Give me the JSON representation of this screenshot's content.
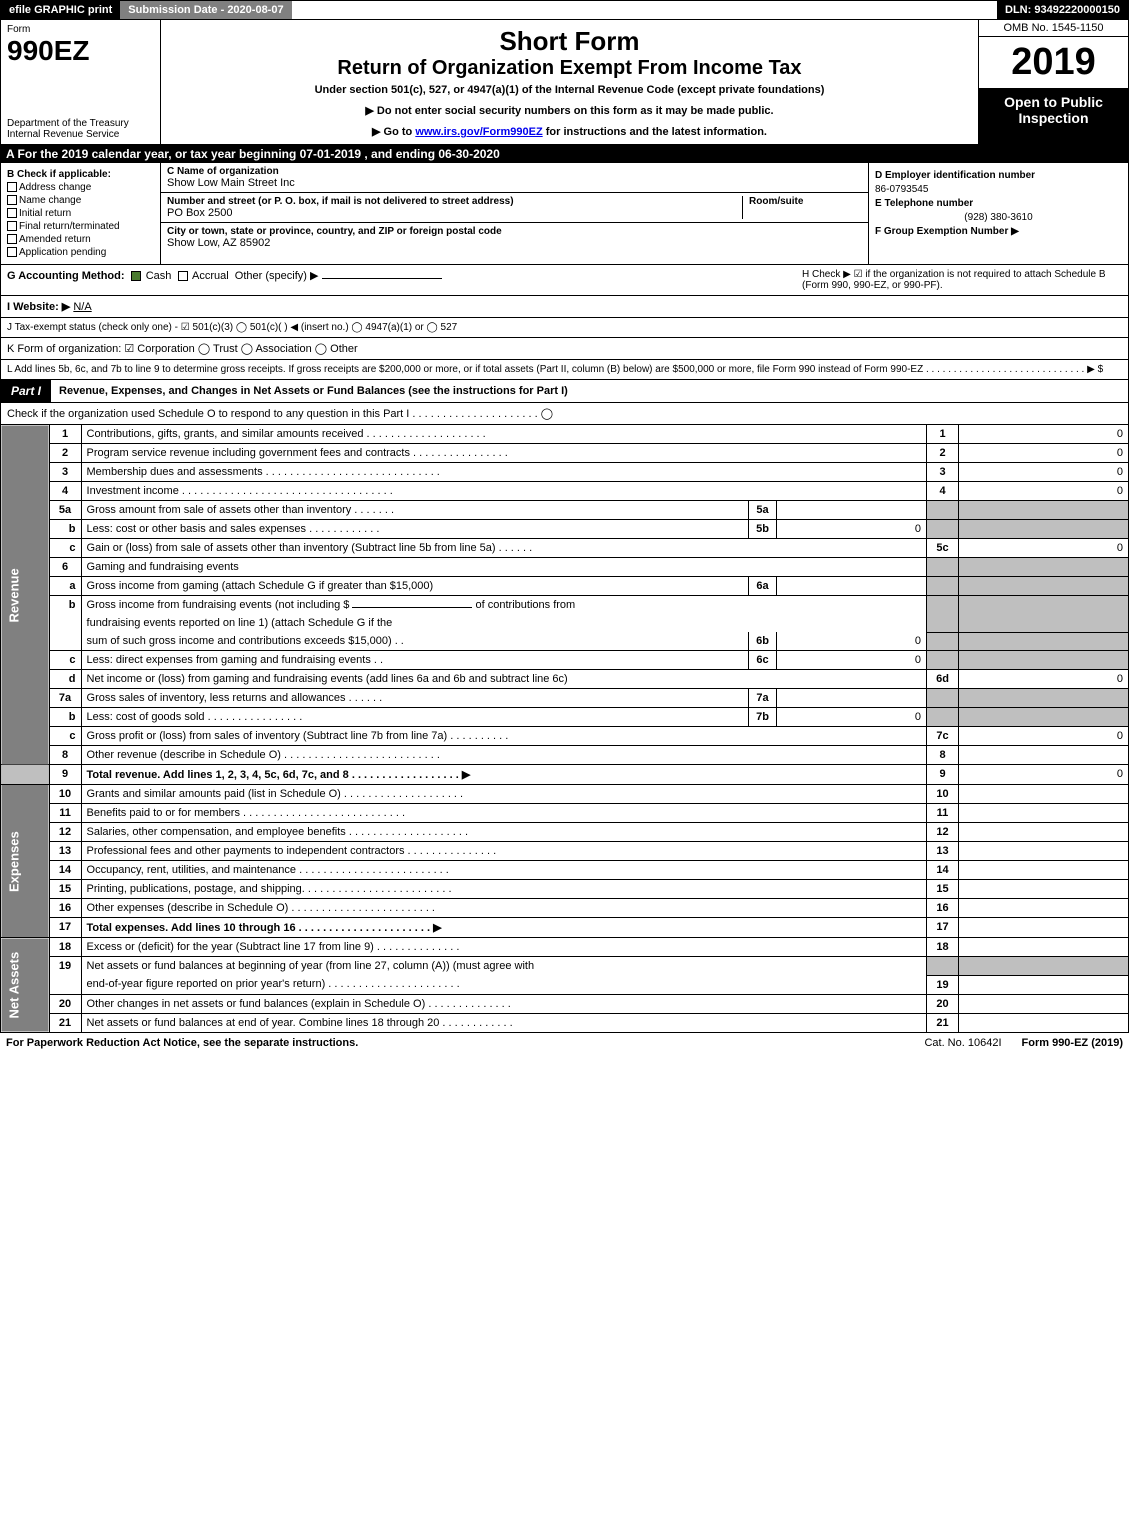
{
  "topbar": {
    "efile": "efile GRAPHIC print",
    "submission": "Submission Date - 2020-08-07",
    "dln": "DLN: 93492220000150"
  },
  "header": {
    "form_word": "Form",
    "form_num": "990EZ",
    "dept": "Department of the Treasury",
    "irs": "Internal Revenue Service",
    "short": "Short Form",
    "title": "Return of Organization Exempt From Income Tax",
    "sub": "Under section 501(c), 527, or 4947(a)(1) of the Internal Revenue Code (except private foundations)",
    "arrow1": "▶ Do not enter social security numbers on this form as it may be made public.",
    "arrow2_pre": "▶ Go to ",
    "arrow2_link": "www.irs.gov/Form990EZ",
    "arrow2_post": " for instructions and the latest information.",
    "omb": "OMB No. 1545-1150",
    "year": "2019",
    "open": "Open to Public Inspection"
  },
  "line_a": "A  For the 2019 calendar year, or tax year beginning 07-01-2019 , and ending 06-30-2020",
  "box_b": {
    "title": "B  Check if applicable:",
    "addr": "Address change",
    "name": "Name change",
    "init": "Initial return",
    "final": "Final return/terminated",
    "amend": "Amended return",
    "app": "Application pending"
  },
  "box_c": {
    "label": "C Name of organization",
    "org": "Show Low Main Street Inc",
    "addr_label": "Number and street (or P. O. box, if mail is not delivered to street address)",
    "addr": "PO Box 2500",
    "room": "Room/suite",
    "city_label": "City or town, state or province, country, and ZIP or foreign postal code",
    "city": "Show Low, AZ  85902"
  },
  "box_d": {
    "d_label": "D Employer identification number",
    "d_val": "86-0793545",
    "e_label": "E Telephone number",
    "e_val": "(928) 380-3610",
    "f_label": "F Group Exemption Number   ▶"
  },
  "line_g": {
    "label": "G Accounting Method:",
    "cash": "Cash",
    "accr": "Accrual",
    "other": "Other (specify) ▶"
  },
  "line_h": "H  Check ▶  ☑  if the organization is not required to attach Schedule B (Form 990, 990-EZ, or 990-PF).",
  "line_i": {
    "label": "I Website: ▶",
    "val": "N/A"
  },
  "line_j": "J Tax-exempt status (check only one) - ☑ 501(c)(3)  ◯ 501(c)(  ) ◀ (insert no.)  ◯ 4947(a)(1) or  ◯ 527",
  "line_k": "K Form of organization:   ☑ Corporation   ◯ Trust   ◯ Association   ◯ Other",
  "line_l": "L Add lines 5b, 6c, and 7b to line 9 to determine gross receipts. If gross receipts are $200,000 or more, or if total assets (Part II, column (B) below) are $500,000 or more, file Form 990 instead of Form 990-EZ  . . . . . . . . . . . . . . . . . . . . . . . . . . . . .  ▶ $",
  "part1": {
    "tab": "Part I",
    "title": "Revenue, Expenses, and Changes in Net Assets or Fund Balances (see the instructions for Part I)",
    "check_o": "Check if the organization used Schedule O to respond to any question in this Part I . . . . . . . . . . . . . . . . . . . . .  ◯"
  },
  "sidebars": {
    "rev": "Revenue",
    "exp": "Expenses",
    "na": "Net Assets"
  },
  "rows": {
    "r1": {
      "n": "1",
      "t": "Contributions, gifts, grants, and similar amounts received  . . . . . . . . . . . . . . . . . . . .",
      "c": "1",
      "v": "0"
    },
    "r2": {
      "n": "2",
      "t": "Program service revenue including government fees and contracts  . . . . . . . . . . . . . . . .",
      "c": "2",
      "v": "0"
    },
    "r3": {
      "n": "3",
      "t": "Membership dues and assessments  . . . . . . . . . . . . . . . . . . . . . . . . . . . . .",
      "c": "3",
      "v": "0"
    },
    "r4": {
      "n": "4",
      "t": "Investment income  . . . . . . . . . . . . . . . . . . . . . . . . . . . . . . . . . . .",
      "c": "4",
      "v": "0"
    },
    "r5a": {
      "n": "5a",
      "t": "Gross amount from sale of assets other than inventory  . . . . . . .",
      "mn": "5a",
      "mv": ""
    },
    "r5b": {
      "n": "b",
      "t": "Less: cost or other basis and sales expenses  . . . . . . . . . . . .",
      "mn": "5b",
      "mv": "0"
    },
    "r5c": {
      "n": "c",
      "t": "Gain or (loss) from sale of assets other than inventory (Subtract line 5b from line 5a)  . . . . . .",
      "c": "5c",
      "v": "0"
    },
    "r6": {
      "n": "6",
      "t": "Gaming and fundraising events"
    },
    "r6a": {
      "n": "a",
      "t": "Gross income from gaming (attach Schedule G if greater than $15,000)",
      "mn": "6a",
      "mv": ""
    },
    "r6b": {
      "n": "b",
      "t1": "Gross income from fundraising events (not including $ ",
      "t1b": "                       of contributions from",
      "t2": "fundraising events reported on line 1) (attach Schedule G if the",
      "t3": "sum of such gross income and contributions exceeds $15,000)    .  .",
      "mn": "6b",
      "mv": "0"
    },
    "r6c": {
      "n": "c",
      "t": "Less: direct expenses from gaming and fundraising events        .  .",
      "mn": "6c",
      "mv": "0"
    },
    "r6d": {
      "n": "d",
      "t": "Net income or (loss) from gaming and fundraising events (add lines 6a and 6b and subtract line 6c)",
      "c": "6d",
      "v": "0"
    },
    "r7a": {
      "n": "7a",
      "t": "Gross sales of inventory, less returns and allowances  . . . . . .",
      "mn": "7a",
      "mv": ""
    },
    "r7b": {
      "n": "b",
      "t": "Less: cost of goods sold         . . . . . . . . . . . . . . . .",
      "mn": "7b",
      "mv": "0"
    },
    "r7c": {
      "n": "c",
      "t": "Gross profit or (loss) from sales of inventory (Subtract line 7b from line 7a)  . . . . . . . . . .",
      "c": "7c",
      "v": "0"
    },
    "r8": {
      "n": "8",
      "t": "Other revenue (describe in Schedule O)  . . . . . . . . . . . . . . . . . . . . . . . . . .",
      "c": "8",
      "v": ""
    },
    "r9": {
      "n": "9",
      "t": "Total revenue. Add lines 1, 2, 3, 4, 5c, 6d, 7c, and 8   . . . . . . . . . . . . . . . . . .   ▶",
      "c": "9",
      "v": "0"
    },
    "r10": {
      "n": "10",
      "t": "Grants and similar amounts paid (list in Schedule O)  . . . . . . . . . . . . . . . . . . . .",
      "c": "10",
      "v": ""
    },
    "r11": {
      "n": "11",
      "t": "Benefits paid to or for members      . . . . . . . . . . . . . . . . . . . . . . . . . . .",
      "c": "11",
      "v": ""
    },
    "r12": {
      "n": "12",
      "t": "Salaries, other compensation, and employee benefits  . . . . . . . . . . . . . . . . . . . .",
      "c": "12",
      "v": ""
    },
    "r13": {
      "n": "13",
      "t": "Professional fees and other payments to independent contractors  . . . . . . . . . . . . . . .",
      "c": "13",
      "v": ""
    },
    "r14": {
      "n": "14",
      "t": "Occupancy, rent, utilities, and maintenance . . . . . . . . . . . . . . . . . . . . . . . . .",
      "c": "14",
      "v": ""
    },
    "r15": {
      "n": "15",
      "t": "Printing, publications, postage, and shipping. . . . . . . . . . . . . . . . . . . . . . . . .",
      "c": "15",
      "v": ""
    },
    "r16": {
      "n": "16",
      "t": "Other expenses (describe in Schedule O)     . . . . . . . . . . . . . . . . . . . . . . . .",
      "c": "16",
      "v": ""
    },
    "r17": {
      "n": "17",
      "t": "Total expenses. Add lines 10 through 16     . . . . . . . . . . . . . . . . . . . . . .  ▶",
      "c": "17",
      "v": ""
    },
    "r18": {
      "n": "18",
      "t": "Excess or (deficit) for the year (Subtract line 17 from line 9)        . . . . . . . . . . . . . .",
      "c": "18",
      "v": ""
    },
    "r19": {
      "n": "19",
      "t1": "Net assets or fund balances at beginning of year (from line 27, column (A)) (must agree with",
      "t2": "end-of-year figure reported on prior year's return) . . . . . . . . . . . . . . . . . . . . . .",
      "c": "19",
      "v": ""
    },
    "r20": {
      "n": "20",
      "t": "Other changes in net assets or fund balances (explain in Schedule O) . . . . . . . . . . . . . .",
      "c": "20",
      "v": ""
    },
    "r21": {
      "n": "21",
      "t": "Net assets or fund balances at end of year. Combine lines 18 through 20 . . . . . . . . . . . .",
      "c": "21",
      "v": ""
    }
  },
  "footer": {
    "l": "For Paperwork Reduction Act Notice, see the separate instructions.",
    "m": "Cat. No. 10642I",
    "r": "Form 990-EZ (2019)"
  },
  "style": {
    "colors": {
      "black": "#000000",
      "gray_bar": "#808080",
      "gray_cell": "#bfbfbf",
      "check_green": "#4a7a2f",
      "link": "#0000ee"
    },
    "fontsize": {
      "base": 11,
      "title_short": 26,
      "title_long": 20,
      "year": 38,
      "form_num": 28,
      "part_tab": 12,
      "sidebar": 13,
      "small": 10
    }
  }
}
